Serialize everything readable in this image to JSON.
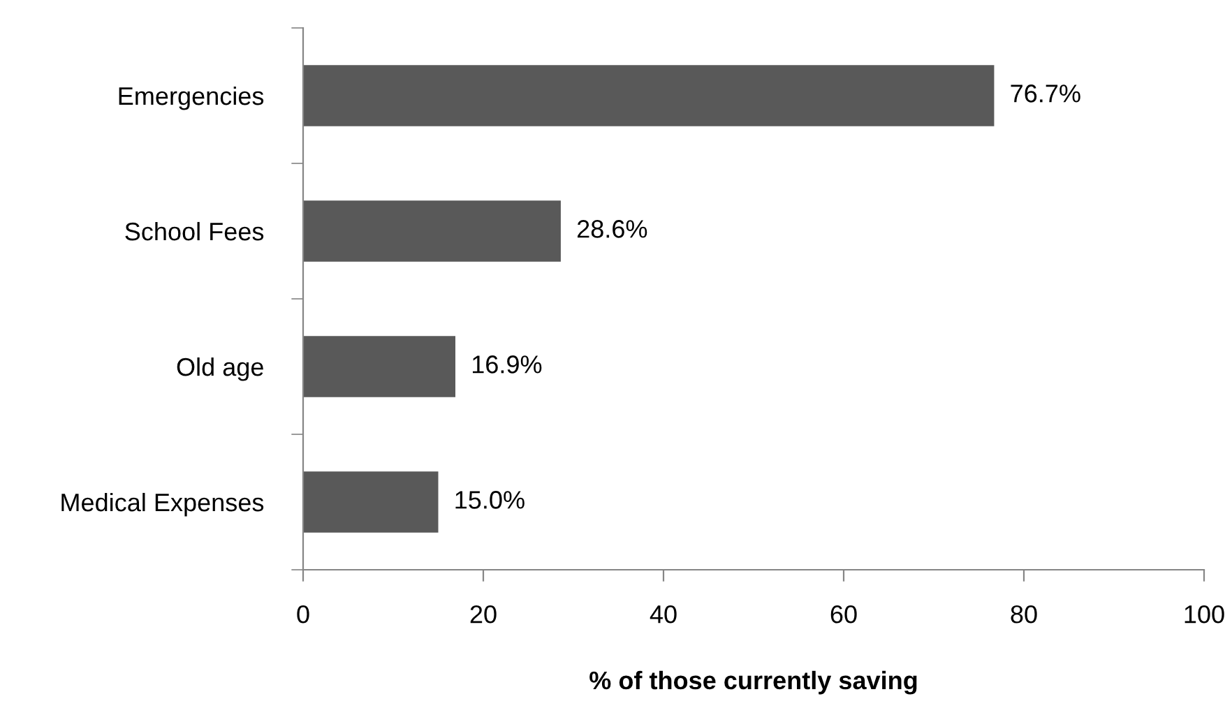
{
  "chart_data": {
    "type": "bar",
    "orientation": "horizontal",
    "categories": [
      "Emergencies",
      "School Fees",
      "Old age",
      "Medical Expenses"
    ],
    "values": [
      76.7,
      28.6,
      16.9,
      15.0
    ],
    "value_labels": [
      "76.7%",
      "28.6%",
      "16.9%",
      "15.0%"
    ],
    "color": "#595959",
    "xlabel": "% of those currently saving",
    "xlim": [
      0,
      100
    ],
    "xticks": [
      0,
      20,
      40,
      60,
      80,
      100
    ],
    "grid": false,
    "legend": false
  }
}
